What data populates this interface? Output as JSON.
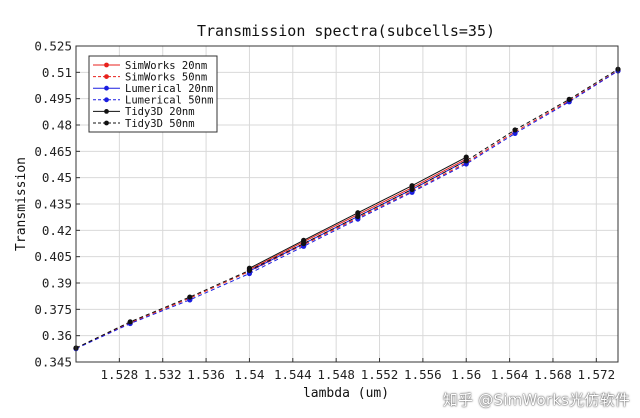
{
  "chart_data": {
    "type": "line",
    "title": "Transmission spectra(subcells=35)",
    "xlabel": "lambda (um)",
    "ylabel": "Transmission",
    "xlim": [
      1.524,
      1.574
    ],
    "ylim": [
      0.345,
      0.525
    ],
    "xticks": [
      "1.528",
      "1.532",
      "1.536",
      "1.54",
      "1.544",
      "1.548",
      "1.552",
      "1.556",
      "1.56",
      "1.564",
      "1.568",
      "1.572"
    ],
    "xtick_values": [
      1.528,
      1.532,
      1.536,
      1.54,
      1.544,
      1.548,
      1.552,
      1.556,
      1.56,
      1.564,
      1.568,
      1.572
    ],
    "yticks": [
      "0.345",
      "0.36",
      "0.375",
      "0.39",
      "0.405",
      "0.42",
      "0.435",
      "0.45",
      "0.465",
      "0.48",
      "0.495",
      "0.51",
      "0.525"
    ],
    "ytick_values": [
      0.345,
      0.36,
      0.375,
      0.39,
      0.405,
      0.42,
      0.435,
      0.45,
      0.465,
      0.48,
      0.495,
      0.51,
      0.525
    ],
    "grid": true,
    "legend_position": "top-left",
    "series": [
      {
        "name": "SimWorks 20nm",
        "color": "#e8211c",
        "dash": "solid",
        "x": [
          1.54,
          1.545,
          1.55,
          1.555,
          1.56
        ],
        "y": [
          0.3976,
          0.4135,
          0.429,
          0.4443,
          0.4606
        ]
      },
      {
        "name": "SimWorks 50nm",
        "color": "#e8211c",
        "dash": "dashed",
        "x": [
          1.524,
          1.529,
          1.5345,
          1.54,
          1.545,
          1.55,
          1.555,
          1.56,
          1.5645,
          1.5695,
          1.574
        ],
        "y": [
          0.3528,
          0.3674,
          0.3813,
          0.3966,
          0.4118,
          0.4271,
          0.4423,
          0.4585,
          0.4761,
          0.4938,
          0.511
        ]
      },
      {
        "name": "Lumerical 20nm",
        "color": "#1b1ee0",
        "dash": "solid",
        "x": [
          1.54,
          1.545,
          1.55,
          1.555,
          1.56
        ],
        "y": [
          0.3968,
          0.4124,
          0.4279,
          0.4433,
          0.4597
        ]
      },
      {
        "name": "Lumerical 50nm",
        "color": "#1b1ee0",
        "dash": "dashed",
        "x": [
          1.524,
          1.529,
          1.5345,
          1.54,
          1.545,
          1.55,
          1.555,
          1.56,
          1.5645,
          1.5695,
          1.574
        ],
        "y": [
          0.3526,
          0.3669,
          0.3804,
          0.3954,
          0.4109,
          0.4264,
          0.4417,
          0.4578,
          0.4752,
          0.4932,
          0.5108
        ]
      },
      {
        "name": "Tidy3D 20nm",
        "color": "#111111",
        "dash": "solid",
        "x": [
          1.54,
          1.545,
          1.55,
          1.555,
          1.56
        ],
        "y": [
          0.3984,
          0.4143,
          0.43,
          0.4454,
          0.4617
        ]
      },
      {
        "name": "Tidy3D 50nm",
        "color": "#111111",
        "dash": "dashed",
        "x": [
          1.524,
          1.529,
          1.5345,
          1.54,
          1.545,
          1.55,
          1.555,
          1.56,
          1.5645,
          1.5695,
          1.574
        ],
        "y": [
          0.353,
          0.3679,
          0.382,
          0.3972,
          0.4125,
          0.4279,
          0.4433,
          0.4596,
          0.4772,
          0.4946,
          0.5118
        ]
      }
    ]
  },
  "watermark": "知乎 @SimWorks光仿软件"
}
